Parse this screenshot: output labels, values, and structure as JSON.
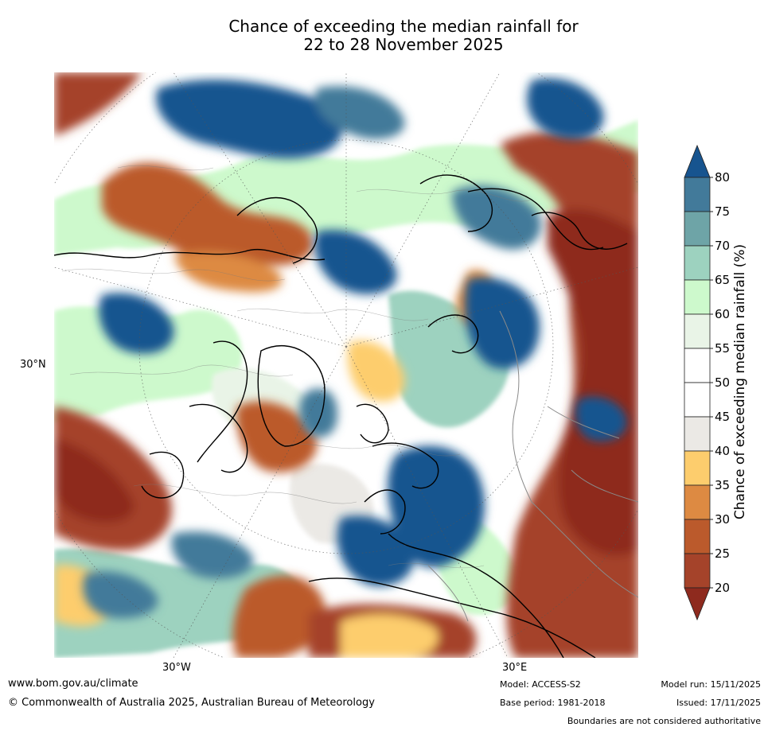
{
  "title": {
    "line1": "Chance of exceeding the median rainfall for",
    "line2": "22 to 28 November 2025"
  },
  "map": {
    "projection": "north-polar-stereographic",
    "graticule_labels": {
      "left": "30°N",
      "bottom_left": "30°W",
      "bottom_right": "30°E"
    }
  },
  "colorbar": {
    "label": "Chance of exceeding median rainfall (%)",
    "ticks": [
      "80",
      "75",
      "70",
      "65",
      "60",
      "55",
      "50",
      "45",
      "40",
      "35",
      "30",
      "25",
      "20"
    ],
    "colors": {
      "above_80": "#17548f",
      "75_80": "#427a9a",
      "70_75": "#6ea4a7",
      "65_70": "#9dd2bf",
      "60_65": "#cdf9cc",
      "55_60": "#e9f4e7",
      "50_55": "#ffffff",
      "45_50": "#ffffff",
      "40_45": "#ebe9e5",
      "35_40": "#fdcd6d",
      "30_35": "#dd8a42",
      "25_30": "#bb5a2c",
      "20_25": "#a5432a",
      "below_20": "#8e2a1e"
    }
  },
  "footer": {
    "website": "www.bom.gov.au/climate",
    "copyright": "© Commonwealth of Australia 2025, Australian Bureau of Meteorology",
    "model": "Model: ACCESS-S2",
    "base_period": "Base period: 1981-2018",
    "model_run": "Model run: 15/11/2025",
    "issued": "Issued: 17/11/2025",
    "disclaimer": "Boundaries are not considered authoritative"
  }
}
